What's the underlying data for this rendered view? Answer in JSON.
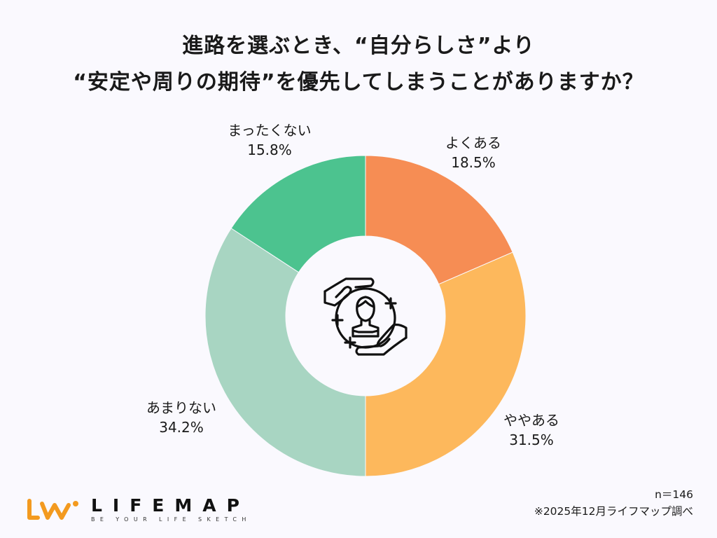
{
  "title": {
    "line1": "進路を選ぶとき、“自分らしさ”より",
    "line2": "“安定や周りの期待”を優先してしまうことがありますか？"
  },
  "chart_data": {
    "type": "pie",
    "subtype": "donut",
    "title": "進路を選ぶとき、“自分らしさ”より“安定や周りの期待”を優先してしまうことがありますか？",
    "categories": [
      "よくある",
      "ややある",
      "あまりない",
      "まったくない"
    ],
    "values": [
      18.5,
      31.5,
      34.2,
      15.8
    ],
    "unit": "%",
    "colors": [
      "#f68d54",
      "#fdb85c",
      "#a8d5c2",
      "#4cc38f"
    ],
    "labels": [
      {
        "name": "よくある",
        "value": "18.5%"
      },
      {
        "name": "ややある",
        "value": "31.5%"
      },
      {
        "name": "あまりない",
        "value": "34.2%"
      },
      {
        "name": "まったくない",
        "value": "15.8%"
      }
    ],
    "start_angle": "12 o'clock, clockwise",
    "legend": "none (direct labels)",
    "sample_size": "n＝146",
    "center_icon": "hands-protecting-person-icon"
  },
  "footer": {
    "sample": "n＝146",
    "source": "※2025年12月ライフマップ調べ"
  },
  "logo": {
    "name": "LIFEMAP",
    "tagline": "BE YOUR LIFE SKETCH",
    "color": "#f39a1f"
  }
}
